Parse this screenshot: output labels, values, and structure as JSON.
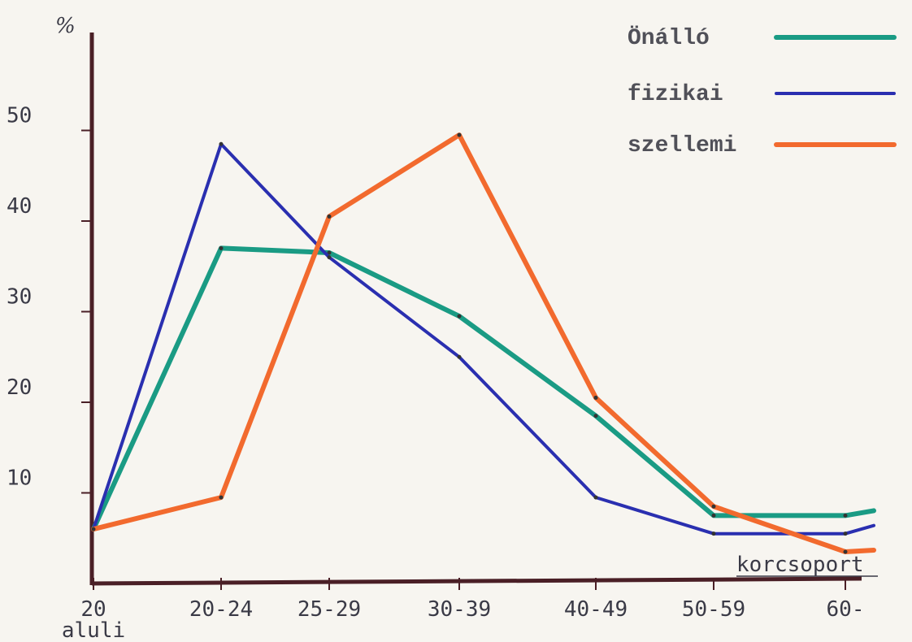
{
  "chart_data": {
    "type": "line",
    "ylabel": "%",
    "xlabel": "korcsoport",
    "ylim": [
      0,
      60
    ],
    "yticks": [
      10,
      20,
      30,
      40,
      50
    ],
    "categories": [
      [
        "20",
        "aluli"
      ],
      [
        "20-24"
      ],
      [
        "25-29"
      ],
      [
        "30-39"
      ],
      [
        "40-49"
      ],
      [
        "50-59"
      ],
      [
        "60-"
      ]
    ],
    "legend_position": "top-right",
    "series": [
      {
        "name": "Önálló",
        "color": "#1a9b84",
        "values": [
          6,
          37,
          36.5,
          29.5,
          18.5,
          7.5,
          7.5
        ]
      },
      {
        "name": "fizikai",
        "color": "#2a2fb0",
        "values": [
          6,
          48.5,
          36,
          25,
          9.5,
          5.5,
          5.5
        ]
      },
      {
        "name": "szellemi",
        "color": "#f26a2e",
        "values": [
          6,
          9.5,
          40.5,
          49.5,
          20.5,
          8.5,
          3.5
        ]
      }
    ]
  }
}
